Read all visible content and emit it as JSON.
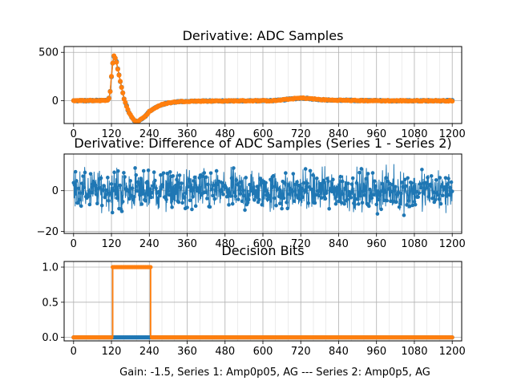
{
  "figure": {
    "xlabel": "Gain: -1.5, Series 1: Amp0p05, AG --- Series 2: Amp0p5, AG"
  },
  "colors": {
    "series1": "#1f77b4",
    "series2": "#ff7f0e"
  },
  "chart_data": [
    {
      "type": "line",
      "title": "Derivative: ADC Samples",
      "xlim": [
        -30,
        1230
      ],
      "ylim": [
        -235,
        560
      ],
      "xticks": [
        0,
        120,
        240,
        360,
        480,
        600,
        720,
        840,
        960,
        1080,
        1200
      ],
      "xtick_labels": [
        "0",
        "120",
        "240",
        "360",
        "480",
        "600",
        "720",
        "840",
        "960",
        "1080",
        "1200"
      ],
      "yticks": [
        0,
        500
      ],
      "ytick_labels": [
        "0",
        "500"
      ],
      "series": [
        {
          "name": "Series 1",
          "color": "#1f77b4",
          "x": [
            0,
            100,
            110,
            115,
            120,
            125,
            128,
            130,
            135,
            140,
            150,
            160,
            175,
            190,
            200,
            215,
            230,
            240,
            260,
            280,
            300,
            330,
            360,
            420,
            480,
            540,
            600,
            640,
            660,
            680,
            700,
            720,
            740,
            760,
            800,
            900,
            1000,
            1100,
            1200
          ],
          "values": [
            0,
            3,
            8,
            60,
            250,
            420,
            460,
            455,
            420,
            330,
            170,
            20,
            -120,
            -200,
            -215,
            -190,
            -150,
            -110,
            -70,
            -40,
            -22,
            -10,
            -5,
            -3,
            -2,
            0,
            0,
            2,
            8,
            16,
            22,
            28,
            26,
            18,
            8,
            2,
            0,
            0,
            0
          ]
        },
        {
          "name": "Series 2",
          "color": "#ff7f0e",
          "x": [
            0,
            100,
            110,
            115,
            120,
            125,
            128,
            130,
            135,
            140,
            150,
            160,
            175,
            190,
            200,
            215,
            230,
            240,
            260,
            280,
            300,
            330,
            360,
            420,
            480,
            540,
            600,
            640,
            660,
            680,
            700,
            720,
            740,
            760,
            800,
            900,
            1000,
            1100,
            1200
          ],
          "values": [
            0,
            3,
            8,
            60,
            250,
            420,
            460,
            455,
            420,
            330,
            170,
            20,
            -120,
            -200,
            -215,
            -190,
            -150,
            -110,
            -70,
            -40,
            -22,
            -10,
            -5,
            -3,
            -2,
            0,
            0,
            2,
            8,
            16,
            22,
            28,
            26,
            18,
            8,
            2,
            0,
            0,
            0
          ]
        }
      ]
    },
    {
      "type": "line",
      "title": "Derivative: Difference of ADC Samples (Series 1 - Series 2)",
      "xlim": [
        -30,
        1230
      ],
      "ylim": [
        -21,
        18
      ],
      "xticks": [
        0,
        120,
        240,
        360,
        480,
        600,
        720,
        840,
        960,
        1080,
        1200
      ],
      "xtick_labels": [
        "0",
        "120",
        "240",
        "360",
        "480",
        "600",
        "720",
        "840",
        "960",
        "1080",
        "1200"
      ],
      "yticks": [
        -20,
        0
      ],
      "ytick_labels": [
        "−20",
        "0"
      ],
      "noise": {
        "n_points": 1201,
        "x_range": [
          0,
          1200
        ],
        "typical_amplitude": 8,
        "max_abs": 19,
        "mean": 0
      },
      "series": [
        {
          "name": "Series 1 - Series 2",
          "color": "#1f77b4"
        }
      ]
    },
    {
      "type": "step",
      "title": "Decision Bits",
      "xlim": [
        -30,
        1230
      ],
      "ylim": [
        -0.05,
        1.08
      ],
      "xticks": [
        0,
        120,
        240,
        360,
        480,
        600,
        720,
        840,
        960,
        1080,
        1200
      ],
      "xtick_labels": [
        "0",
        "120",
        "240",
        "360",
        "480",
        "600",
        "720",
        "840",
        "960",
        "1080",
        "1200"
      ],
      "yticks": [
        0,
        0.5,
        1
      ],
      "ytick_labels": [
        "0.0",
        "0.5",
        "1.0"
      ],
      "series": [
        {
          "name": "Series 1",
          "color": "#1f77b4",
          "x": [
            0,
            1200
          ],
          "values": [
            0,
            0
          ]
        },
        {
          "name": "Series 2",
          "color": "#ff7f0e",
          "x": [
            0,
            124,
            124,
            244,
            244,
            1200
          ],
          "values": [
            0,
            0,
            1,
            1,
            0,
            0
          ]
        }
      ]
    }
  ]
}
